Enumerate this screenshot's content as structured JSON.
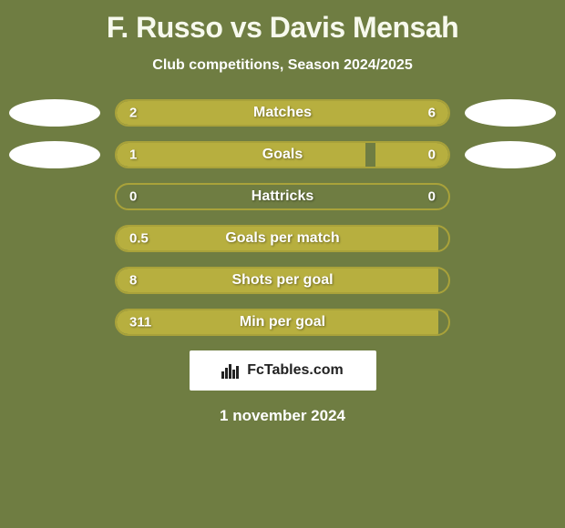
{
  "background_color": "#6f7d42",
  "title": "F. Russo vs Davis Mensah",
  "title_color": "#f7f9ed",
  "subtitle": "Club competitions, Season 2024/2025",
  "subtitle_color": "#ffffff",
  "logo_color": "#ffffff",
  "bar_border_color": "#a9a23a",
  "bar_empty_color": "#6f7d42",
  "bar_fill_left_color": "#b7af3f",
  "bar_fill_right_color": "#b7af3f",
  "bar_label_color": "#ffffff",
  "bar_value_color": "#ffffff",
  "stats": [
    {
      "label": "Matches",
      "left_val": "2",
      "right_val": "6",
      "left_pct": 22,
      "right_pct": 78,
      "show_logos": true
    },
    {
      "label": "Goals",
      "left_val": "1",
      "right_val": "0",
      "left_pct": 75,
      "right_pct": 22,
      "show_logos": true
    },
    {
      "label": "Hattricks",
      "left_val": "0",
      "right_val": "0",
      "left_pct": 0,
      "right_pct": 0,
      "show_logos": false
    },
    {
      "label": "Goals per match",
      "left_val": "0.5",
      "right_val": "",
      "left_pct": 97,
      "right_pct": 0,
      "show_logos": false
    },
    {
      "label": "Shots per goal",
      "left_val": "8",
      "right_val": "",
      "left_pct": 97,
      "right_pct": 0,
      "show_logos": false
    },
    {
      "label": "Min per goal",
      "left_val": "311",
      "right_val": "",
      "left_pct": 97,
      "right_pct": 0,
      "show_logos": false
    }
  ],
  "watermark_bg": "#ffffff",
  "watermark_text_color": "#222222",
  "watermark_text": "FcTables.com",
  "footer_date": "1 november 2024",
  "footer_color": "#ffffff"
}
